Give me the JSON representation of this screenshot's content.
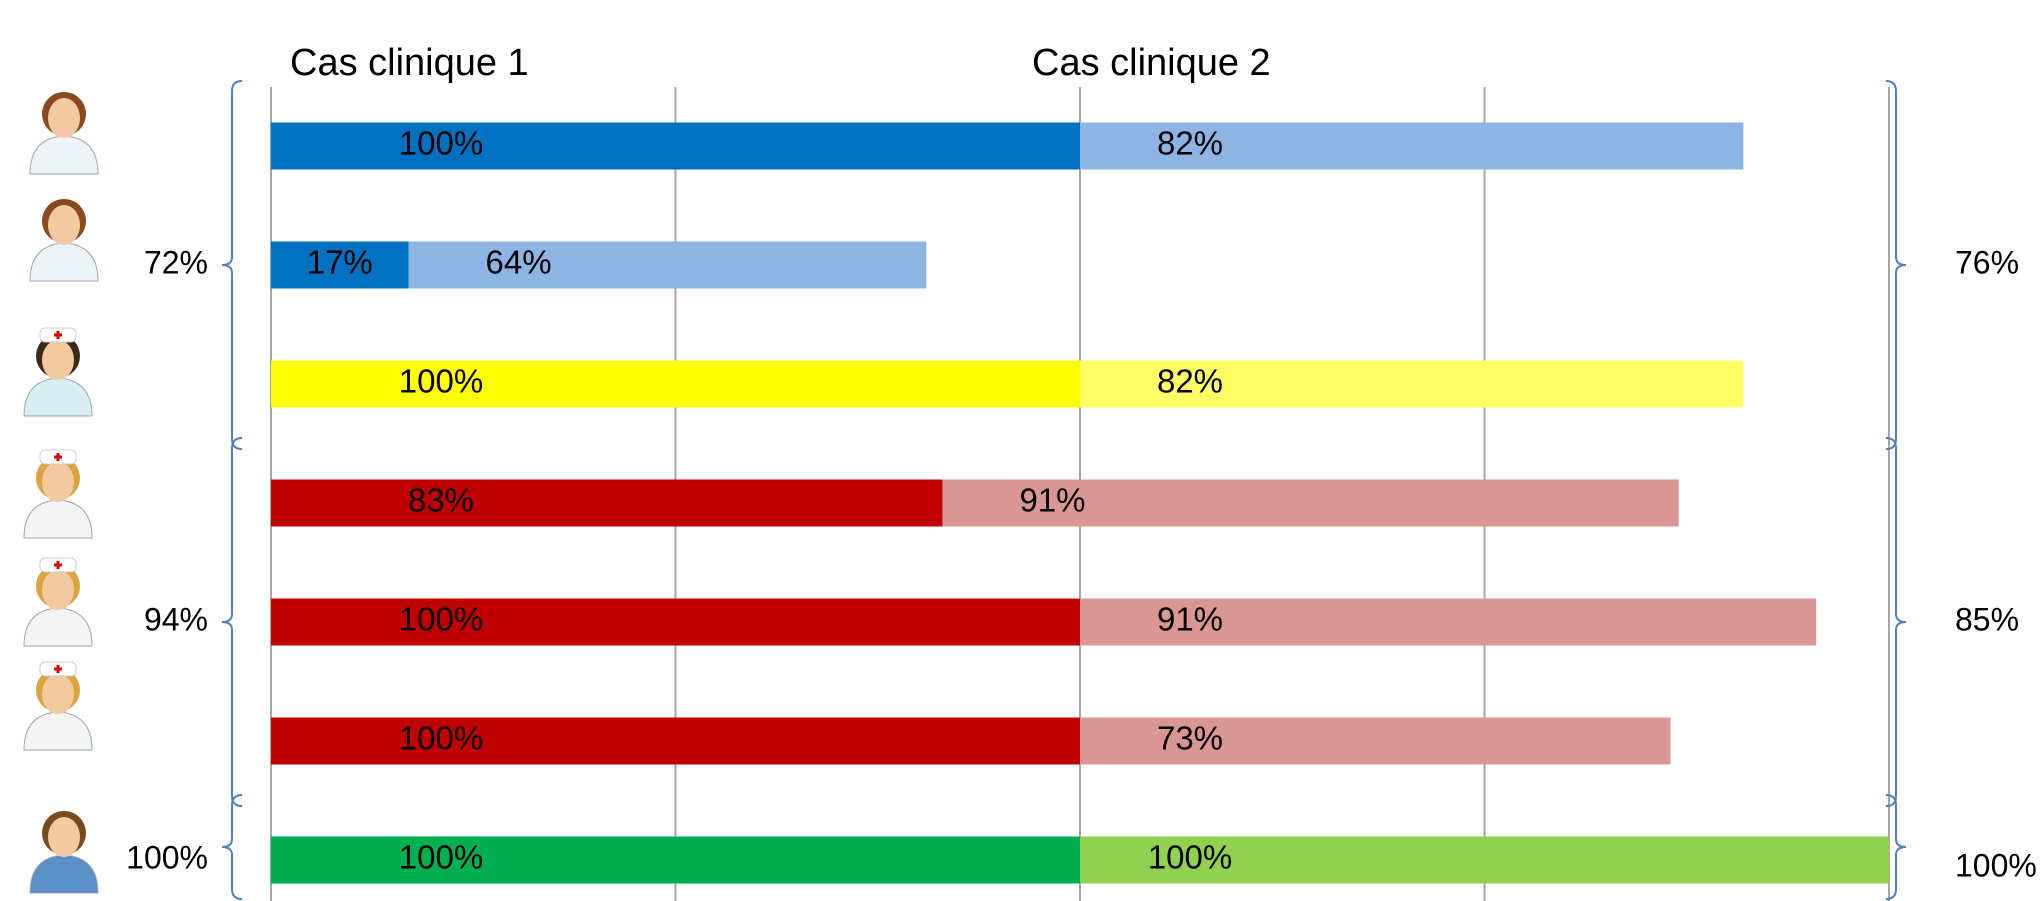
{
  "chart_data": {
    "type": "stacked-bar-horizontal",
    "categories": [
      null,
      null,
      null,
      null,
      null,
      null,
      null
    ],
    "series": [
      {
        "name": "Cas clinique 1",
        "colors": [
          "#0070c0",
          "#0070c0",
          "#ffff00",
          "#c00000",
          "#c00000",
          "#c00000",
          "#00b050"
        ],
        "values": [
          100,
          17,
          100,
          83,
          100,
          100,
          100
        ],
        "value_labels": [
          "100%",
          "17%",
          "100%",
          "83%",
          "100%",
          "100%",
          "100%"
        ]
      },
      {
        "name": "Cas clinique 2",
        "colors": [
          "#8eb4e3",
          "#8eb4e3",
          "#ffff66",
          "#d99694",
          "#d99694",
          "#d99694",
          "#92d050"
        ],
        "values": [
          82,
          64,
          82,
          91,
          91,
          73,
          100
        ],
        "value_labels": [
          "82%",
          "64%",
          "82%",
          "91%",
          "91%",
          "73%",
          "100%"
        ]
      }
    ],
    "xlim": [
      0,
      200
    ],
    "xticks": [
      0,
      50,
      100,
      150,
      200
    ],
    "grid": true,
    "group_annotations": {
      "left": [
        "72%",
        "94%",
        "100%"
      ],
      "right": [
        "76%",
        "85%",
        "100%"
      ]
    }
  }
}
